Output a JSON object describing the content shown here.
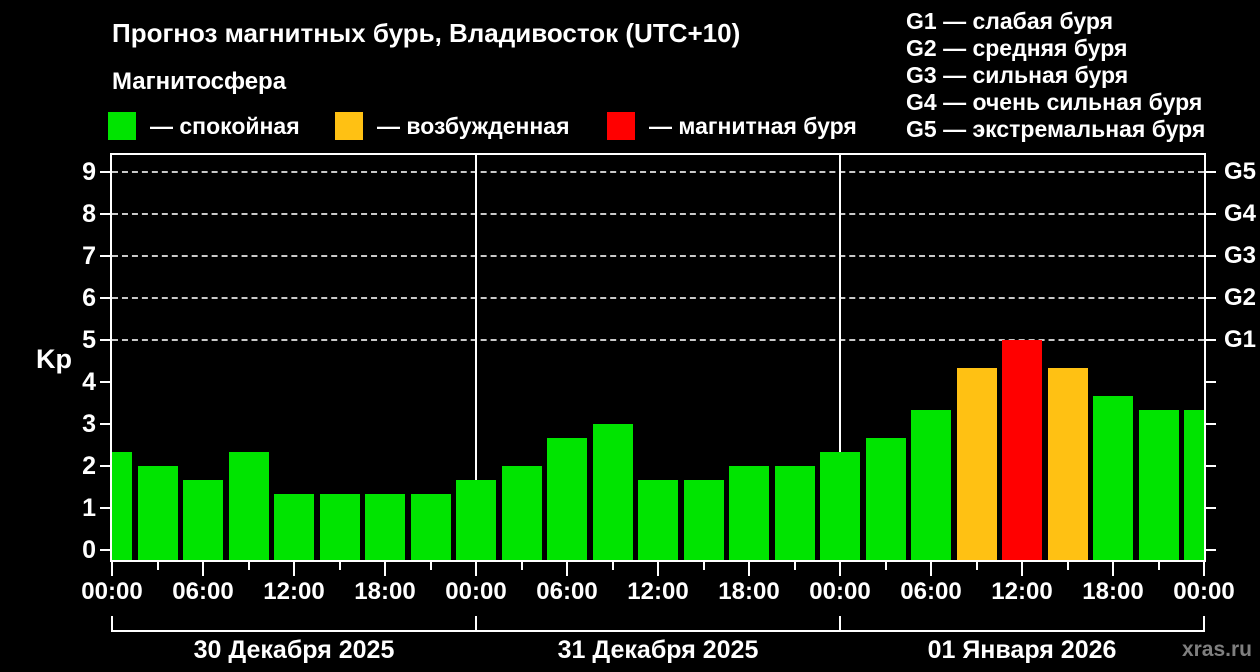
{
  "watermark": "xras.ru",
  "chart_data": {
    "type": "bar",
    "title": "Прогноз магнитных бурь, Владивосток (UTC+10)",
    "subtitle": "Магнитосфера",
    "ylabel": "Kp",
    "ylim": [
      0,
      9
    ],
    "y_ticks": [
      0,
      1,
      2,
      3,
      4,
      5,
      6,
      7,
      8,
      9
    ],
    "grid_levels_kp": [
      5,
      6,
      7,
      8,
      9
    ],
    "right_labels": [
      {
        "kp": 5,
        "label": "G1"
      },
      {
        "kp": 6,
        "label": "G2"
      },
      {
        "kp": 7,
        "label": "G3"
      },
      {
        "kp": 8,
        "label": "G4"
      },
      {
        "kp": 9,
        "label": "G5"
      }
    ],
    "legend": [
      {
        "state": "quiet",
        "label": "— спокойная",
        "color": "#00e400"
      },
      {
        "state": "excited",
        "label": "— возбужденная",
        "color": "#ffc113"
      },
      {
        "state": "storm",
        "label": "— магнитная буря",
        "color": "#ff0000"
      }
    ],
    "g_scale": [
      "G1 — слабая буря",
      "G2 — средняя буря",
      "G3 — сильная буря",
      "G4 — очень сильная буря",
      "G5 — экстремальная буря"
    ],
    "x_hours_step": 3,
    "x_major_labels": [
      "00:00",
      "06:00",
      "12:00",
      "18:00",
      "00:00",
      "06:00",
      "12:00",
      "18:00",
      "00:00",
      "06:00",
      "12:00",
      "18:00",
      "00:00"
    ],
    "day_divider_hours": [
      24,
      48
    ],
    "day_sections": [
      "30 Декабря 2025",
      "31 Декабря 2025",
      "01 Января 2026"
    ],
    "state_colors": {
      "quiet": "#00e400",
      "excited": "#ffc113",
      "storm": "#ff0000"
    },
    "bars": [
      {
        "hour": 0,
        "kp": 2.33,
        "state": "quiet"
      },
      {
        "hour": 3,
        "kp": 2.0,
        "state": "quiet"
      },
      {
        "hour": 6,
        "kp": 1.67,
        "state": "quiet"
      },
      {
        "hour": 9,
        "kp": 2.33,
        "state": "quiet"
      },
      {
        "hour": 12,
        "kp": 1.33,
        "state": "quiet"
      },
      {
        "hour": 15,
        "kp": 1.33,
        "state": "quiet"
      },
      {
        "hour": 18,
        "kp": 1.33,
        "state": "quiet"
      },
      {
        "hour": 21,
        "kp": 1.33,
        "state": "quiet"
      },
      {
        "hour": 24,
        "kp": 1.67,
        "state": "quiet"
      },
      {
        "hour": 27,
        "kp": 2.0,
        "state": "quiet"
      },
      {
        "hour": 30,
        "kp": 2.67,
        "state": "quiet"
      },
      {
        "hour": 33,
        "kp": 3.0,
        "state": "quiet"
      },
      {
        "hour": 36,
        "kp": 1.67,
        "state": "quiet"
      },
      {
        "hour": 39,
        "kp": 1.67,
        "state": "quiet"
      },
      {
        "hour": 42,
        "kp": 2.0,
        "state": "quiet"
      },
      {
        "hour": 45,
        "kp": 2.0,
        "state": "quiet"
      },
      {
        "hour": 48,
        "kp": 2.33,
        "state": "quiet"
      },
      {
        "hour": 51,
        "kp": 2.67,
        "state": "quiet"
      },
      {
        "hour": 54,
        "kp": 3.33,
        "state": "quiet"
      },
      {
        "hour": 57,
        "kp": 4.33,
        "state": "excited"
      },
      {
        "hour": 60,
        "kp": 5.0,
        "state": "storm"
      },
      {
        "hour": 63,
        "kp": 4.33,
        "state": "excited"
      },
      {
        "hour": 66,
        "kp": 3.67,
        "state": "quiet"
      },
      {
        "hour": 69,
        "kp": 3.33,
        "state": "quiet"
      },
      {
        "hour": 72,
        "kp": 3.33,
        "state": "quiet"
      }
    ]
  }
}
